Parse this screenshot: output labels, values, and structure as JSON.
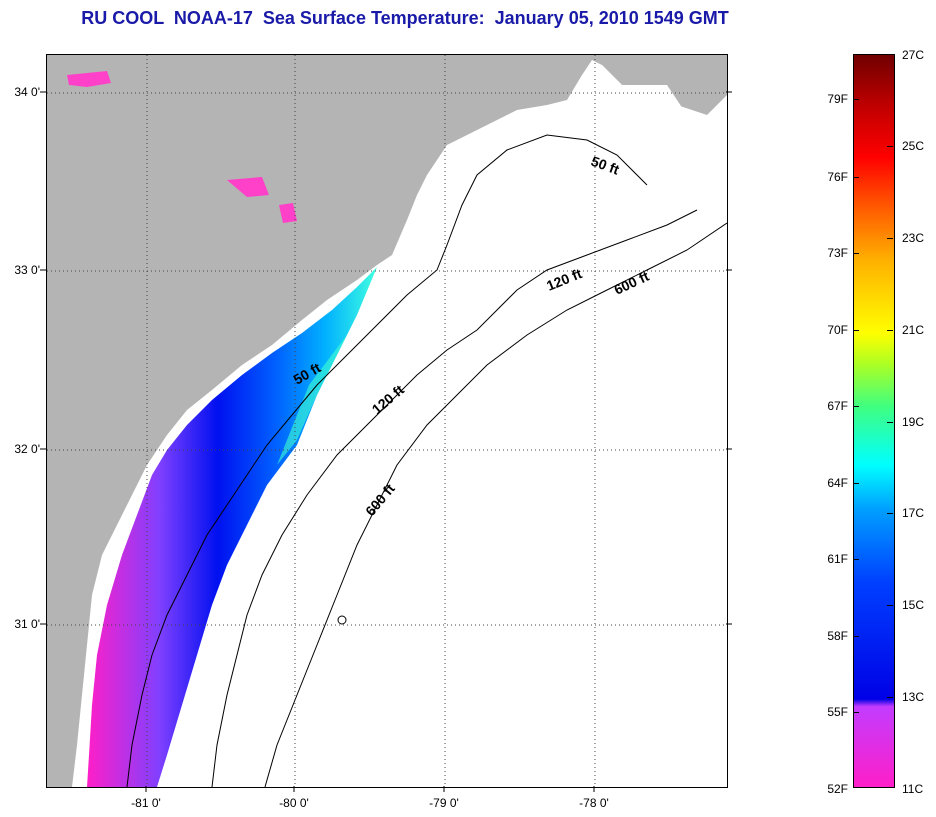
{
  "title": "RU COOL  NOAA-17  Sea Surface Temperature:  January 05, 2010 1549 GMT",
  "y_axis_labels": [
    "34 0'",
    "33 0'",
    "32 0'",
    "31 0'"
  ],
  "x_axis_labels": [
    "-81 0'",
    "-80 0'",
    "-79 0'",
    "-78 0'"
  ],
  "contour_labels": {
    "c50_north": "50 ft",
    "c120_north": "120 ft",
    "c600_north": "600 ft",
    "c50_south": "50 ft",
    "c120_south": "120 ft",
    "c600_south": "600 ft"
  },
  "colorbar": {
    "fahrenheit_labels": [
      "79F",
      "76F",
      "73F",
      "70F",
      "67F",
      "64F",
      "61F",
      "58F",
      "55F",
      "52F"
    ],
    "celsius_labels": [
      "27C",
      "25C",
      "23C",
      "21C",
      "19C",
      "17C",
      "15C",
      "13C",
      "11C"
    ],
    "range_c": [
      11,
      27
    ],
    "range_f": [
      52,
      80
    ]
  },
  "colors": {
    "land": "#b4b4b4",
    "water_no_data": "#ffffff",
    "title": "#1a1aa8"
  }
}
